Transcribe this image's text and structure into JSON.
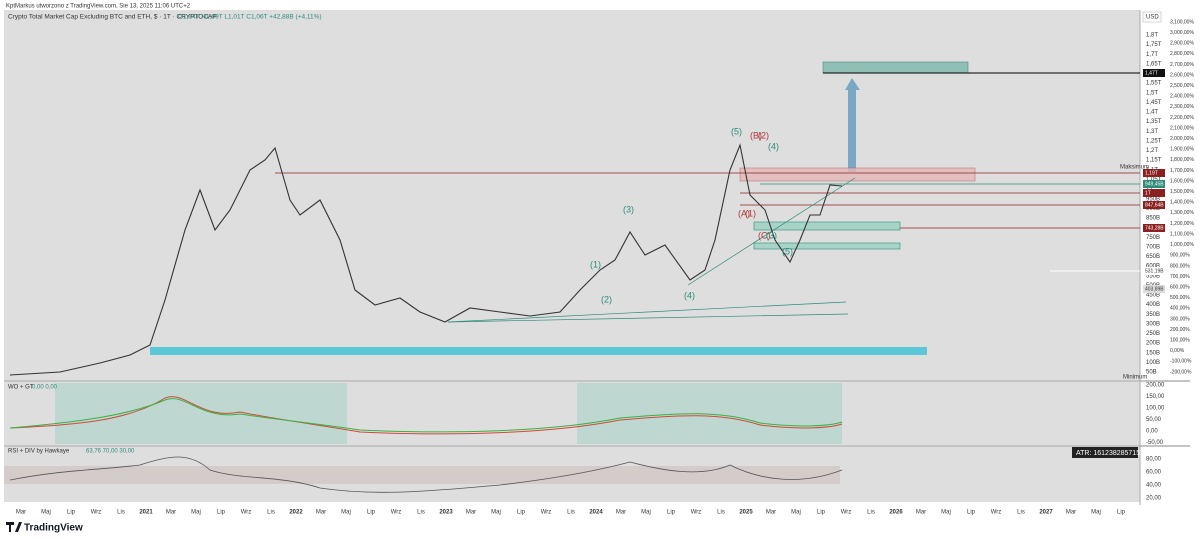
{
  "header": {
    "author": "KptMarkus utworzono z TradingView.com, Sie 13, 2025 11:06 UTC+2",
    "symbol": "Crypto Total Market Cap Excluding BTC and ETH, $ · 1T · CRYPTOCAP",
    "ohlc": "O1,04T H1,09T L1,01T C1,06T +42,88B (+4,11%)"
  },
  "price_axis": {
    "currency": "USD",
    "labels": [
      "1,8T",
      "1,75T",
      "1,7T",
      "1,65T",
      "1,6T",
      "1,55T",
      "1,5T",
      "1,45T",
      "1,4T",
      "1,35T",
      "1,3T",
      "1,25T",
      "1,2T",
      "1,15T",
      "1,1T",
      "1,05T",
      "1T",
      "950B",
      "900B",
      "850B",
      "800B",
      "750B",
      "700B",
      "650B",
      "600B",
      "550B",
      "500B",
      "450B",
      "400B",
      "350B",
      "300B",
      "250B",
      "200B",
      "150B",
      "100B",
      "50B"
    ],
    "percent_labels": [
      "3,100,00%",
      "3,000,00%",
      "2,900,00%",
      "2,800,00%",
      "2,700,00%",
      "2,600,00%",
      "2,500,00%",
      "2,400,00%",
      "2,300,00%",
      "2,200,00%",
      "2,100,00%",
      "2,000,00%",
      "1,900,00%",
      "1,800,00%",
      "1,700,00%",
      "1,600,00%",
      "1,500,00%",
      "1,400,00%",
      "1,300,00%",
      "1,200,00%",
      "1,100,00%",
      "1,000,00%",
      "900,00%",
      "800,00%",
      "700,00%",
      "600,00%",
      "500,00%",
      "400,00%",
      "300,00%",
      "200,00%",
      "100,00%",
      "0,00%",
      "-100,00%",
      "-200,00%"
    ],
    "tags": [
      "1,47T",
      "1,19T",
      "1,06T",
      "1T",
      "949,45B",
      "847,64B",
      "743,28B",
      "531,19B",
      "403,89B"
    ],
    "maximum": "Maksimum",
    "minimum": "Minimum"
  },
  "waves": [
    "(5)",
    "(B)",
    "(2)",
    "(4)",
    "(A)",
    "(1)",
    "(C)",
    "(3)",
    "(5)",
    "(3)",
    "(1)",
    "(2)",
    "(4)"
  ],
  "indicator_wo": {
    "title": "WO + GT",
    "values": "0,00 0,00",
    "axis": [
      "200,00",
      "150,00",
      "100,00",
      "50,00",
      "0,00",
      "-50,00"
    ]
  },
  "indicator_rsi": {
    "title": "RSI + DIV by Hawkaye",
    "values": "63,76 70,00 30,00",
    "axis": [
      "80,00",
      "60,00",
      "40,00",
      "20,00"
    ],
    "atr": "ATR: 161238285715.3"
  },
  "time_axis": [
    "Mar",
    "Maj",
    "Lip",
    "Wrz",
    "Lis",
    "2021",
    "Mar",
    "Maj",
    "Lip",
    "Wrz",
    "Lis",
    "2022",
    "Mar",
    "Maj",
    "Lip",
    "Wrz",
    "Lis",
    "2023",
    "Mar",
    "Maj",
    "Lip",
    "Wrz",
    "Lis",
    "2024",
    "Mar",
    "Maj",
    "Lip",
    "Wrz",
    "Lis",
    "2025",
    "Mar",
    "Maj",
    "Lip",
    "Wrz",
    "Lis",
    "2026",
    "Mar",
    "Maj",
    "Lip",
    "Wrz",
    "Lis",
    "2027",
    "Mar",
    "Maj",
    "Lip"
  ],
  "logo": "TradingView"
}
